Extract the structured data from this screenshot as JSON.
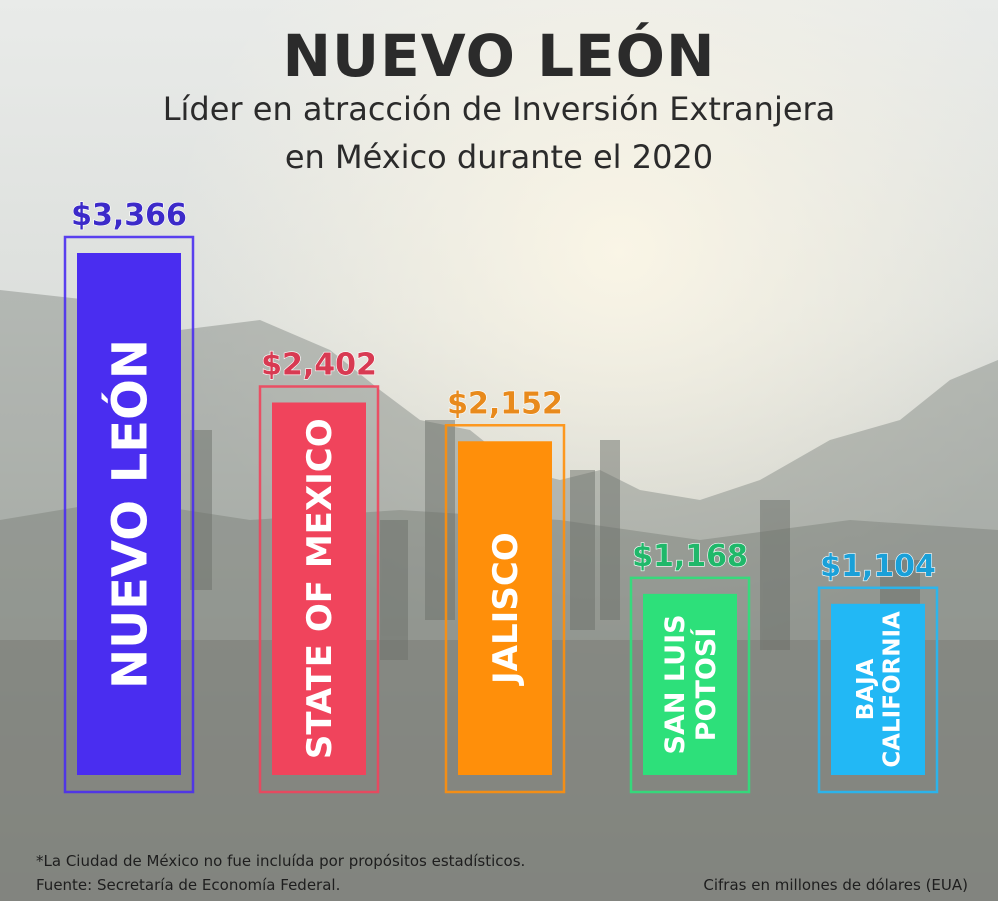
{
  "header": {
    "title": "NUEVO LEÓN",
    "subtitle_line1": "Líder en atracción de Inversión Extranjera",
    "subtitle_line2": "en México durante el 2020"
  },
  "footer": {
    "note": "*La Ciudad de México no fue incluída por propósitos estadísticos.",
    "source": "Fuente: Secretaría de Economía Federal.",
    "units": "Cifras en millones de dólares (EUA)"
  },
  "chart_data": {
    "type": "bar",
    "title": "Líder en atracción de Inversión Extranjera en México durante el 2020",
    "xlabel": "",
    "ylabel": "Cifras en millones de dólares (EUA)",
    "ylim": [
      0,
      3366
    ],
    "grid": false,
    "categories": [
      "NUEVO LEÓN",
      "STATE OF MEXICO",
      "JALISCO",
      "SAN LUIS POTOSÍ",
      "BAJA CALIFORNIA"
    ],
    "bar_label_lines": [
      [
        "NUEVO LEÓN"
      ],
      [
        "STATE OF MEXICO"
      ],
      [
        "JALISCO"
      ],
      [
        "SAN LUIS",
        "POTOSÍ"
      ],
      [
        "BAJA",
        "CALIFORNIA"
      ]
    ],
    "values": [
      3366,
      2402,
      2152,
      1168,
      1104
    ],
    "value_labels": [
      "$3,366",
      "$2,402",
      "$2,152",
      "$1,168",
      "$1,104"
    ],
    "colors": [
      "#4a2df0",
      "#f0445c",
      "#ff8f0a",
      "#2de07a",
      "#22b8f5"
    ],
    "value_label_colors": [
      "#3c2ac9",
      "#d83a52",
      "#e88a1c",
      "#20b86a",
      "#1aa0d8"
    ]
  }
}
